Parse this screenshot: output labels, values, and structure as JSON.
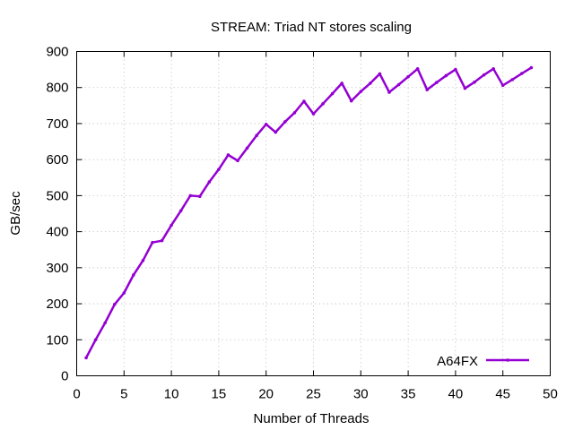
{
  "chart_data": {
    "type": "line",
    "title": "STREAM: Triad NT stores scaling",
    "xlabel": "Number of Threads",
    "ylabel": "GB/sec",
    "xlim": [
      0,
      50
    ],
    "ylim": [
      0,
      900
    ],
    "xticks": [
      0,
      5,
      10,
      15,
      20,
      25,
      30,
      35,
      40,
      45,
      50
    ],
    "yticks": [
      0,
      100,
      200,
      300,
      400,
      500,
      600,
      700,
      800,
      900
    ],
    "grid": true,
    "legend_position": "bottom-right",
    "series": [
      {
        "name": "A64FX",
        "color": "#9400d3",
        "x": [
          1,
          2,
          3,
          4,
          5,
          6,
          7,
          8,
          9,
          10,
          11,
          12,
          13,
          14,
          15,
          16,
          17,
          18,
          19,
          20,
          21,
          22,
          23,
          24,
          25,
          26,
          27,
          28,
          29,
          30,
          31,
          32,
          33,
          34,
          35,
          36,
          37,
          38,
          39,
          40,
          41,
          42,
          43,
          44,
          45,
          46,
          47,
          48
        ],
        "values": [
          50,
          100,
          147,
          198,
          230,
          280,
          320,
          370,
          375,
          418,
          458,
          500,
          498,
          538,
          573,
          613,
          597,
          632,
          667,
          698,
          676,
          705,
          730,
          762,
          727,
          755,
          783,
          812,
          763,
          789,
          812,
          838,
          787,
          808,
          830,
          852,
          794,
          814,
          833,
          850,
          798,
          815,
          835,
          852,
          806,
          822,
          839,
          855
        ]
      }
    ]
  }
}
